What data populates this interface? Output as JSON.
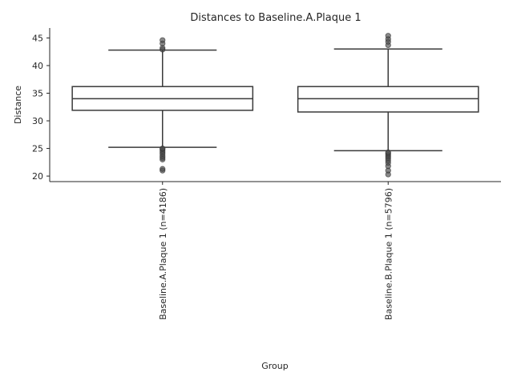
{
  "chart_data": {
    "type": "boxplot",
    "title": "Distances to Baseline.A.Plaque 1",
    "xlabel": "Group",
    "ylabel": "Distance",
    "ylim": [
      19,
      46.8
    ],
    "yticks": [
      20,
      25,
      30,
      35,
      40,
      45
    ],
    "grid": false,
    "categories": [
      "Baseline.A.Plaque 1 (n=4186)",
      "Baseline.B.Plaque 1 (n=5796)"
    ],
    "boxes": [
      {
        "category": "Baseline.A.Plaque 1 (n=4186)",
        "whisker_low": 25.2,
        "q1": 31.9,
        "median": 34.0,
        "q3": 36.2,
        "whisker_high": 42.8,
        "outliers": [
          21.0,
          21.3,
          23.0,
          23.3,
          23.6,
          24.0,
          24.3,
          24.6,
          24.9,
          25.0,
          42.9,
          43.2,
          44.0,
          44.6
        ]
      },
      {
        "category": "Baseline.B.Plaque 1 (n=5796)",
        "whisker_low": 24.6,
        "q1": 31.6,
        "median": 34.0,
        "q3": 36.2,
        "whisker_high": 43.0,
        "outliers": [
          20.3,
          21.0,
          21.8,
          22.4,
          22.8,
          23.2,
          23.5,
          23.8,
          24.1,
          24.3,
          43.7,
          44.3,
          44.8,
          45.4
        ]
      }
    ],
    "colors": {
      "box_face": "#ffffff",
      "line": "#3a3a3a",
      "outlier": "#4a4a4a"
    }
  }
}
